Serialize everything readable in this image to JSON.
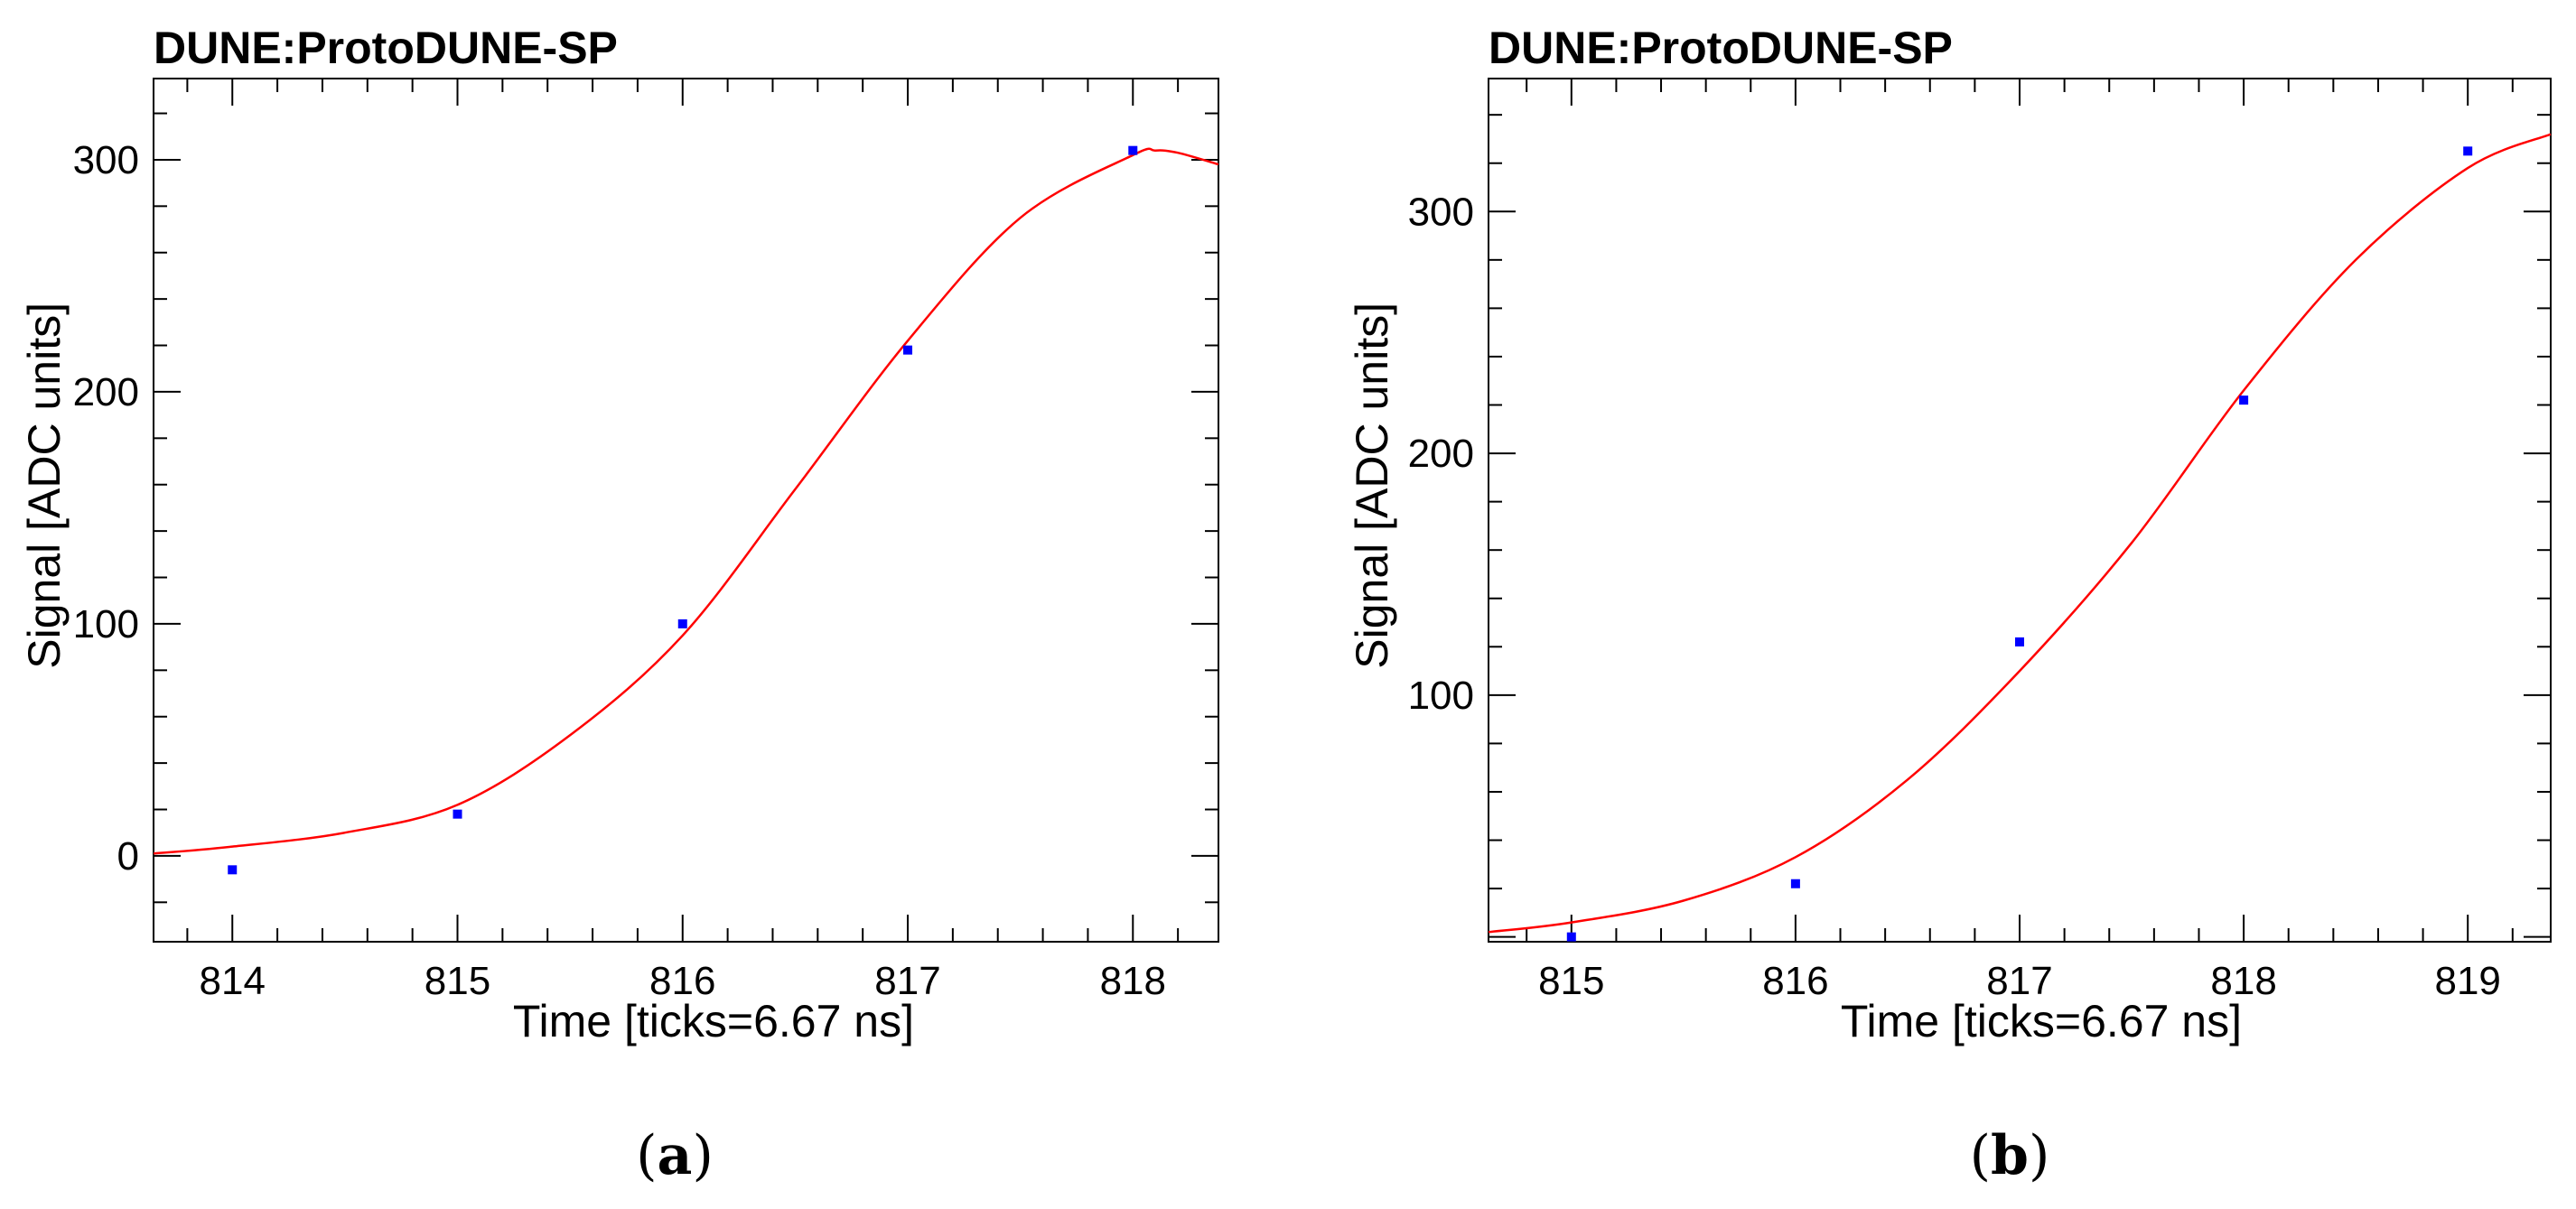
{
  "chart_data": [
    {
      "type": "scatter",
      "title": "DUNE:ProtoDUNE-SP",
      "caption_letter": "a",
      "xlabel": "Time [ticks=6.67 ns]",
      "ylabel": "Signal [ADC units]",
      "xlim": [
        813.65,
        818.38
      ],
      "ylim": [
        -37,
        335
      ],
      "xticks": [
        814,
        815,
        816,
        817,
        818
      ],
      "yticks": [
        0,
        100,
        200,
        300
      ],
      "grid": false,
      "colors": {
        "points": "#0000ff",
        "fit": "#ff0000"
      },
      "points": {
        "x": [
          814,
          815,
          816,
          817,
          818
        ],
        "y": [
          -6,
          18,
          100,
          218,
          304
        ]
      },
      "fit": {
        "x": [
          813.65,
          814.0,
          814.5,
          815.0,
          815.5,
          816.0,
          816.5,
          817.0,
          817.5,
          818.0,
          818.1,
          818.2,
          818.38
        ],
        "y": [
          1,
          4,
          10,
          22,
          52,
          95,
          158,
          222,
          275,
          302,
          304,
          303,
          298
        ]
      }
    },
    {
      "type": "scatter",
      "title": "DUNE:ProtoDUNE-SP",
      "caption_letter": "b",
      "xlabel": "Time [ticks=6.67 ns]",
      "ylabel": "Signal [ADC units]",
      "xlim": [
        814.63,
        819.37
      ],
      "ylim": [
        -2,
        355
      ],
      "xticks": [
        815,
        816,
        817,
        818,
        819
      ],
      "yticks": [
        100,
        200,
        300
      ],
      "grid": false,
      "colors": {
        "points": "#0000ff",
        "fit": "#ff0000"
      },
      "points": {
        "x": [
          815,
          816,
          817,
          818,
          819
        ],
        "y": [
          0,
          22,
          122,
          222,
          325
        ]
      },
      "fit": {
        "x": [
          814.63,
          815.0,
          815.5,
          816.0,
          816.5,
          817.0,
          817.5,
          818.0,
          818.5,
          819.0,
          819.37
        ],
        "y": [
          2,
          6,
          15,
          33,
          65,
          110,
          163,
          226,
          280,
          318,
          332
        ]
      }
    }
  ]
}
